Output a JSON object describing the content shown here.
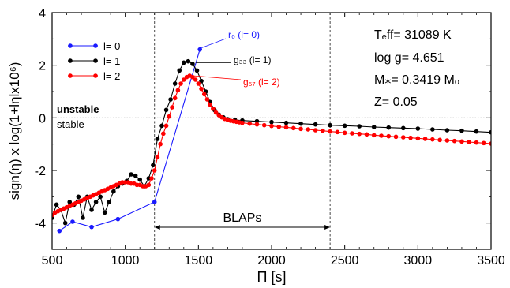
{
  "chart_data": {
    "type": "line",
    "xlabel": "Π [s]",
    "ylabel": "sign(η) x log(1+lηlx10⁶)",
    "xlim": [
      500,
      3500
    ],
    "ylim": [
      -5,
      4
    ],
    "xticks": [
      500,
      1000,
      1500,
      2000,
      2500,
      3000,
      3500
    ],
    "yticks": [
      -4,
      -2,
      0,
      2,
      4
    ],
    "grid": false,
    "legend_position": "top-left",
    "annotations": {
      "unstable": "unstable",
      "stable": "stable",
      "blaps": "BLAPs",
      "blaps_range": [
        1200,
        2400
      ],
      "vlines": [
        1200,
        2400
      ],
      "hline": 0,
      "r0": {
        "label": "r₀ (l= 0)",
        "x": 1510,
        "y": 2.6
      },
      "g33": {
        "label": "g₃₃ (l= 1)",
        "x": 1460,
        "y": 2.1
      },
      "g57": {
        "label": "g₅₇ (l= 2)",
        "x": 1440,
        "y": 1.6
      }
    },
    "params": [
      "Tₑff= 31089 K",
      "log g= 4.651",
      "M⁎= 0.3419 Mₒ",
      "Z= 0.05"
    ],
    "series": [
      {
        "name": "l= 0",
        "color": "#1a1aff",
        "x": [
          550,
          640,
          770,
          950,
          1200,
          1510
        ],
        "y": [
          -4.3,
          -3.95,
          -4.15,
          -3.85,
          -3.2,
          2.6
        ]
      },
      {
        "name": "l= 1",
        "color": "#000000",
        "x": [
          500,
          530,
          560,
          590,
          620,
          650,
          680,
          710,
          740,
          770,
          800,
          830,
          860,
          890,
          920,
          950,
          980,
          1010,
          1040,
          1070,
          1100,
          1130,
          1160,
          1190,
          1220,
          1250,
          1280,
          1310,
          1340,
          1370,
          1400,
          1430,
          1460,
          1490,
          1520,
          1550,
          1580,
          1610,
          1640,
          1670,
          1700,
          1750,
          1800,
          1900,
          2000,
          2100,
          2200,
          2300,
          2400,
          2500,
          2600,
          2700,
          2800,
          2900,
          3000,
          3100,
          3200,
          3300,
          3400,
          3500
        ],
        "y": [
          -3.8,
          -3.3,
          -3.5,
          -4.0,
          -3.2,
          -3.3,
          -3.0,
          -3.8,
          -3.0,
          -3.5,
          -3.2,
          -3.0,
          -3.6,
          -3.2,
          -2.8,
          -2.6,
          -2.5,
          -2.4,
          -2.15,
          -2.2,
          -2.35,
          -2.6,
          -2.3,
          -1.8,
          -0.8,
          -0.3,
          0.3,
          0.7,
          1.3,
          1.8,
          2.1,
          2.15,
          2.05,
          1.8,
          1.4,
          1.0,
          0.6,
          0.3,
          0.12,
          0.02,
          -0.05,
          -0.08,
          -0.1,
          -0.13,
          -0.16,
          -0.19,
          -0.22,
          -0.25,
          -0.28,
          -0.3,
          -0.32,
          -0.35,
          -0.37,
          -0.39,
          -0.41,
          -0.44,
          -0.47,
          -0.49,
          -0.52,
          -0.55
        ]
      },
      {
        "name": "l= 2",
        "color": "#ff0000",
        "x": [
          500,
          520,
          540,
          560,
          580,
          600,
          620,
          640,
          660,
          680,
          700,
          720,
          740,
          760,
          780,
          800,
          820,
          840,
          860,
          880,
          900,
          920,
          940,
          960,
          980,
          1000,
          1020,
          1040,
          1060,
          1080,
          1100,
          1120,
          1140,
          1160,
          1180,
          1200,
          1220,
          1240,
          1260,
          1280,
          1300,
          1320,
          1340,
          1360,
          1380,
          1400,
          1420,
          1440,
          1460,
          1480,
          1500,
          1520,
          1540,
          1560,
          1580,
          1600,
          1620,
          1640,
          1660,
          1680,
          1700,
          1720,
          1740,
          1760,
          1780,
          1800,
          1850,
          1900,
          1950,
          2000,
          2050,
          2100,
          2150,
          2200,
          2250,
          2300,
          2350,
          2400,
          2450,
          2500,
          2550,
          2600,
          2650,
          2700,
          2750,
          2800,
          2850,
          2900,
          2950,
          3000,
          3050,
          3100,
          3150,
          3200,
          3250,
          3300,
          3350,
          3400,
          3450,
          3500
        ],
        "y": [
          -3.7,
          -3.6,
          -3.55,
          -3.5,
          -3.45,
          -3.4,
          -3.35,
          -3.3,
          -3.25,
          -3.2,
          -3.15,
          -3.1,
          -3.05,
          -3.0,
          -2.95,
          -2.9,
          -2.85,
          -2.8,
          -2.75,
          -2.7,
          -2.65,
          -2.6,
          -2.55,
          -2.5,
          -2.45,
          -2.45,
          -2.45,
          -2.5,
          -2.5,
          -2.55,
          -2.55,
          -2.6,
          -2.6,
          -2.55,
          -2.3,
          -2.0,
          -1.5,
          -1.0,
          -0.6,
          -0.3,
          0.05,
          0.4,
          0.75,
          1.05,
          1.3,
          1.45,
          1.55,
          1.6,
          1.55,
          1.45,
          1.3,
          1.1,
          0.9,
          0.7,
          0.5,
          0.35,
          0.2,
          0.1,
          0.02,
          -0.04,
          -0.08,
          -0.11,
          -0.13,
          -0.15,
          -0.17,
          -0.19,
          -0.22,
          -0.25,
          -0.28,
          -0.31,
          -0.34,
          -0.36,
          -0.39,
          -0.42,
          -0.44,
          -0.47,
          -0.49,
          -0.52,
          -0.54,
          -0.57,
          -0.59,
          -0.61,
          -0.63,
          -0.66,
          -0.68,
          -0.7,
          -0.72,
          -0.74,
          -0.76,
          -0.78,
          -0.8,
          -0.82,
          -0.84,
          -0.86,
          -0.88,
          -0.9,
          -0.92,
          -0.94,
          -0.96,
          -0.98
        ]
      }
    ]
  }
}
